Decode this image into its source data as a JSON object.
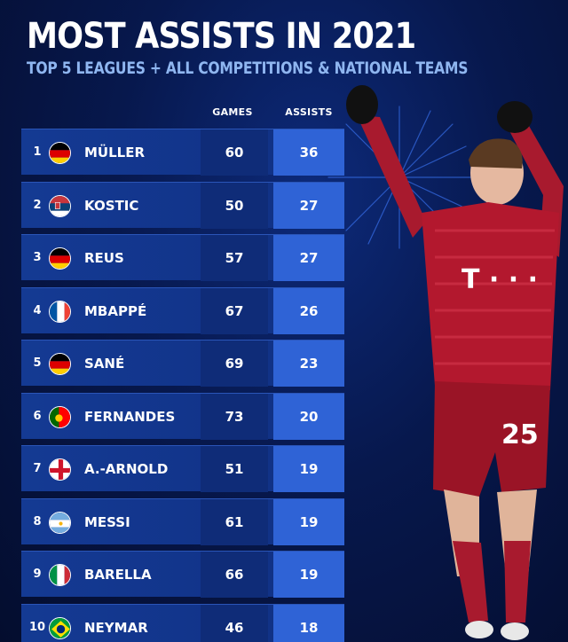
{
  "header": {
    "title": "MOST ASSISTS IN 2021",
    "subtitle": "TOP 5 LEAGUES + ALL COMPETITIONS & NATIONAL TEAMS"
  },
  "columns": {
    "games": "GAMES",
    "assists": "ASSISTS"
  },
  "rows": [
    {
      "rank": "1",
      "flag": "germany-flag-icon",
      "name": "MÜLLER",
      "games": "60",
      "assists": "36"
    },
    {
      "rank": "2",
      "flag": "serbia-flag-icon",
      "name": "KOSTIC",
      "games": "50",
      "assists": "27"
    },
    {
      "rank": "3",
      "flag": "germany-flag-icon",
      "name": "REUS",
      "games": "57",
      "assists": "27"
    },
    {
      "rank": "4",
      "flag": "france-flag-icon",
      "name": "MBAPPÉ",
      "games": "67",
      "assists": "26"
    },
    {
      "rank": "5",
      "flag": "germany-flag-icon",
      "name": "SANÉ",
      "games": "69",
      "assists": "23"
    },
    {
      "rank": "6",
      "flag": "portugal-flag-icon",
      "name": "FERNANDES",
      "games": "73",
      "assists": "20"
    },
    {
      "rank": "7",
      "flag": "england-flag-icon",
      "name": "A.-ARNOLD",
      "games": "51",
      "assists": "19"
    },
    {
      "rank": "8",
      "flag": "argentina-flag-icon",
      "name": "MESSI",
      "games": "61",
      "assists": "19"
    },
    {
      "rank": "9",
      "flag": "italy-flag-icon",
      "name": "BARELLA",
      "games": "66",
      "assists": "19"
    },
    {
      "rank": "10",
      "flag": "brazil-flag-icon",
      "name": "NEYMAR",
      "games": "46",
      "assists": "18"
    }
  ],
  "player": {
    "shirt_number": "25",
    "sponsor": "T · · ·"
  },
  "colors": {
    "background": "#07184d",
    "row": "#143a93",
    "games_cell": "#0f2c78",
    "assists_cell": "#2f63d6",
    "subtitle": "#8fb6f0",
    "jersey": "#b3182e"
  },
  "chart_data": {
    "type": "table",
    "title": "MOST ASSISTS IN 2021",
    "subtitle": "TOP 5 LEAGUES + ALL COMPETITIONS & NATIONAL TEAMS",
    "columns": [
      "GAMES",
      "ASSISTS"
    ],
    "categories": [
      "MÜLLER",
      "KOSTIC",
      "REUS",
      "MBAPPÉ",
      "SANÉ",
      "FERNANDES",
      "A.-ARNOLD",
      "MESSI",
      "BARELLA",
      "NEYMAR"
    ],
    "series": [
      {
        "name": "GAMES",
        "values": [
          60,
          50,
          57,
          67,
          69,
          73,
          51,
          61,
          66,
          46
        ]
      },
      {
        "name": "ASSISTS",
        "values": [
          36,
          27,
          27,
          26,
          23,
          20,
          19,
          19,
          19,
          18
        ]
      }
    ]
  }
}
